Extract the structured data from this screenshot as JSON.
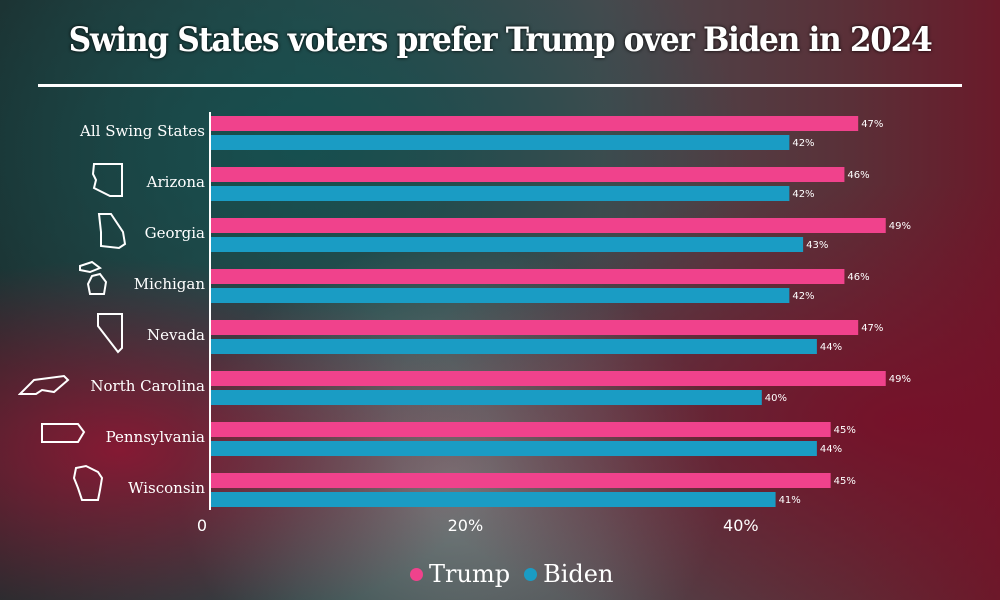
{
  "title": "Swing States voters prefer Trump over Biden in 2024",
  "colors": {
    "trump": "#f0428c",
    "biden": "#1a9cc4"
  },
  "legend": [
    {
      "label": "Trump",
      "color": "#f0428c"
    },
    {
      "label": "Biden",
      "color": "#1a9cc4"
    }
  ],
  "chart_data": {
    "type": "bar",
    "orientation": "horizontal",
    "title": "Swing States voters prefer Trump over Biden in 2024",
    "categories": [
      "All Swing States",
      "Arizona",
      "Georgia",
      "Michigan",
      "Nevada",
      "North Carolina",
      "Pennsylvania",
      "Wisconsin"
    ],
    "series": [
      {
        "name": "Trump",
        "values": [
          47,
          46,
          49,
          46,
          47,
          49,
          45,
          45
        ],
        "labels": [
          "47%",
          "46%",
          "49%",
          "46%",
          "47%",
          "49%",
          "45%",
          "45%"
        ]
      },
      {
        "name": "Biden",
        "values": [
          42,
          42,
          43,
          42,
          44,
          40,
          44,
          41
        ],
        "labels": [
          "42%",
          "42%",
          "43%",
          "42%",
          "44%",
          "40%",
          "44%",
          "41%"
        ]
      }
    ],
    "xticks": [
      {
        "value": 0,
        "label": "0"
      },
      {
        "value": 20,
        "label": "20%"
      },
      {
        "value": 40,
        "label": "40%"
      }
    ],
    "xlim": [
      0,
      57
    ],
    "xlabel": "",
    "ylabel": "",
    "grid": false,
    "legend_position": "bottom-center"
  }
}
